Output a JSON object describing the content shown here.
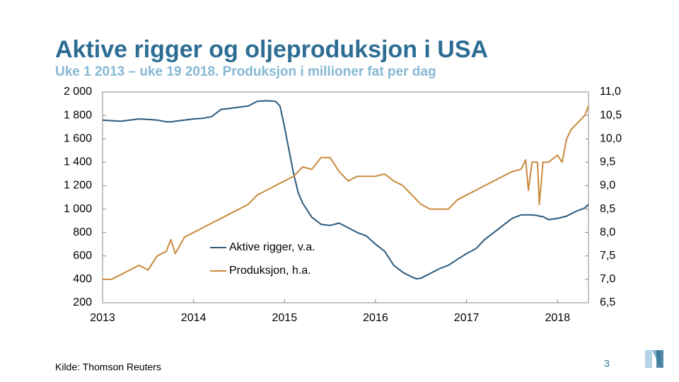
{
  "chart_data": {
    "type": "line",
    "title": "Aktive rigger og oljeproduksjon i USA",
    "subtitle": "Uke 1 2013 – uke 19 2018. Produksjon i millioner fat per dag",
    "x": [
      2013.0,
      2013.1,
      2013.2,
      2013.3,
      2013.4,
      2013.5,
      2013.6,
      2013.7,
      2013.75,
      2013.8,
      2013.9,
      2014.0,
      2014.1,
      2014.2,
      2014.3,
      2014.4,
      2014.5,
      2014.6,
      2014.7,
      2014.8,
      2014.9,
      2014.95,
      2015.0,
      2015.05,
      2015.1,
      2015.15,
      2015.2,
      2015.3,
      2015.4,
      2015.5,
      2015.6,
      2015.7,
      2015.8,
      2015.9,
      2016.0,
      2016.1,
      2016.2,
      2016.3,
      2016.4,
      2016.45,
      2016.5,
      2016.6,
      2016.7,
      2016.8,
      2016.9,
      2017.0,
      2017.1,
      2017.2,
      2017.3,
      2017.4,
      2017.5,
      2017.6,
      2017.65,
      2017.68,
      2017.72,
      2017.78,
      2017.8,
      2017.84,
      2017.9,
      2018.0,
      2018.05,
      2018.1,
      2018.15,
      2018.2,
      2018.3,
      2018.34
    ],
    "series": [
      {
        "name": "Aktive rigger, v.a.",
        "color": "#2a5a7e",
        "axis": "y",
        "values": [
          1760,
          1755,
          1750,
          1760,
          1770,
          1765,
          1760,
          1745,
          1745,
          1750,
          1760,
          1770,
          1775,
          1790,
          1850,
          1860,
          1870,
          1880,
          1920,
          1925,
          1920,
          1880,
          1700,
          1500,
          1300,
          1140,
          1050,
          930,
          870,
          860,
          880,
          840,
          800,
          770,
          700,
          640,
          520,
          460,
          420,
          405,
          410,
          450,
          490,
          520,
          570,
          620,
          660,
          740,
          800,
          860,
          920,
          950,
          950,
          950,
          950,
          945,
          940,
          935,
          910,
          920,
          930,
          940,
          960,
          980,
          1010,
          1040
        ]
      },
      {
        "name": "Produksjon, h.a.",
        "color": "#c98a3e",
        "axis": "y2",
        "values": [
          7.0,
          7.0,
          7.1,
          7.2,
          7.3,
          7.2,
          7.5,
          7.6,
          7.85,
          7.55,
          7.9,
          8.0,
          8.1,
          8.2,
          8.3,
          8.4,
          8.5,
          8.6,
          8.8,
          8.9,
          9.0,
          9.05,
          9.1,
          9.15,
          9.2,
          9.3,
          9.4,
          9.35,
          9.6,
          9.6,
          9.3,
          9.1,
          9.2,
          9.2,
          9.2,
          9.25,
          9.1,
          9.0,
          8.8,
          8.7,
          8.6,
          8.5,
          8.5,
          8.5,
          8.7,
          8.8,
          8.9,
          9.0,
          9.1,
          9.2,
          9.3,
          9.35,
          9.55,
          8.9,
          9.5,
          9.5,
          8.6,
          9.5,
          9.5,
          9.65,
          9.5,
          10.0,
          10.2,
          10.3,
          10.5,
          10.7
        ]
      }
    ],
    "xlim": [
      2013,
      2018.34
    ],
    "xticks": [
      2013,
      2014,
      2015,
      2016,
      2017,
      2018
    ],
    "ylim": [
      200,
      2000
    ],
    "yticks": [
      200,
      400,
      600,
      800,
      {
        "value": 1000,
        "label": "1 000"
      },
      {
        "value": 1200,
        "label": "1 200"
      },
      {
        "value": 1400,
        "label": "1 400"
      },
      {
        "value": 1600,
        "label": "1 600"
      },
      {
        "value": 1800,
        "label": "1 800"
      },
      {
        "value": 2000,
        "label": "2 000"
      }
    ],
    "y2lim": [
      6.5,
      11.0
    ],
    "y2ticks": [
      {
        "value": 6.5,
        "label": "6,5"
      },
      {
        "value": 7.0,
        "label": "7,0"
      },
      {
        "value": 7.5,
        "label": "7,5"
      },
      {
        "value": 8.0,
        "label": "8,0"
      },
      {
        "value": 8.5,
        "label": "8,5"
      },
      {
        "value": 9.0,
        "label": "9,0"
      },
      {
        "value": 9.5,
        "label": "9,5"
      },
      {
        "value": 10.0,
        "label": "10,0"
      },
      {
        "value": 10.5,
        "label": "10,5"
      },
      {
        "value": 11.0,
        "label": "11,0"
      }
    ]
  },
  "source": "Kilde: Thomson Reuters",
  "page_number": "3"
}
